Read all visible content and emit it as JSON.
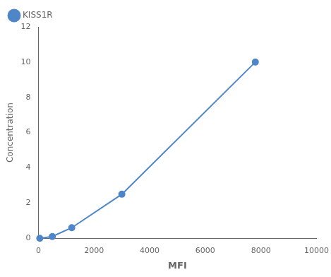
{
  "chart_data": {
    "type": "line",
    "x": [
      50,
      500,
      1200,
      3000,
      7800
    ],
    "series": [
      {
        "name": "KISS1R",
        "color": "#4e86c8",
        "values": [
          0.0,
          0.1,
          0.6,
          2.5,
          10.0
        ],
        "marker": "o"
      }
    ],
    "xlabel": "MFI",
    "ylabel": "Concentration",
    "xlim": [
      0,
      10000
    ],
    "ylim": [
      0,
      12
    ],
    "xticks": [
      0,
      2000,
      4000,
      6000,
      8000,
      10000
    ],
    "yticks": [
      0,
      2,
      4,
      6,
      8,
      10,
      12
    ],
    "grid": false,
    "legend": "upper left"
  }
}
